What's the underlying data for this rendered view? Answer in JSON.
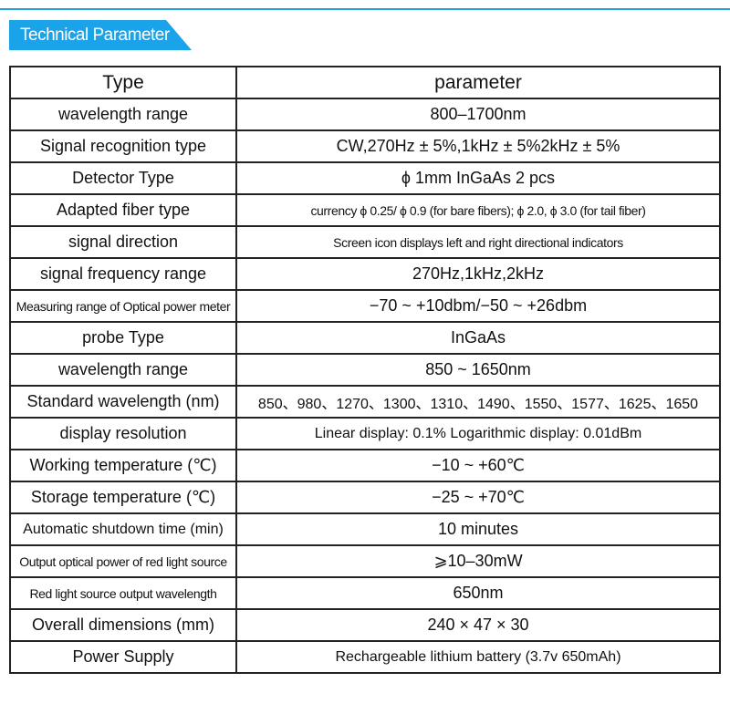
{
  "header": {
    "title": "Technical Parameter"
  },
  "table": {
    "columns": [
      "Type",
      "parameter"
    ],
    "rows": [
      [
        "wavelength range",
        "800–1700nm"
      ],
      [
        "Signal recognition type",
        "CW,270Hz ± 5%,1kHz ± 5%2kHz ± 5%"
      ],
      [
        "Detector Type",
        "ϕ 1mm InGaAs 2 pcs"
      ],
      [
        "Adapted fiber type",
        "currency ϕ 0.25/ ϕ 0.9 (for bare fibers); ϕ 2.0, ϕ 3.0 (for tail fiber)"
      ],
      [
        "signal direction",
        "Screen icon displays left and right directional indicators"
      ],
      [
        "signal frequency range",
        "270Hz,1kHz,2kHz"
      ],
      [
        "Measuring range of Optical power meter",
        "−70 ~ +10dbm/−50 ~ +26dbm"
      ],
      [
        "probe Type",
        "InGaAs"
      ],
      [
        "wavelength range",
        "850 ~ 1650nm"
      ],
      [
        "Standard wavelength (nm)",
        "850、980、1270、1300、1310、1490、1550、1577、1625、1650"
      ],
      [
        "display resolution",
        "Linear display: 0.1% Logarithmic display: 0.01dBm"
      ],
      [
        "Working temperature (℃)",
        "−10 ~ +60℃"
      ],
      [
        "Storage temperature (℃)",
        "−25 ~ +70℃"
      ],
      [
        "Automatic shutdown time (min)",
        "10 minutes"
      ],
      [
        "Output optical power of red light source",
        "⩾10–30mW"
      ],
      [
        "Red light source output wavelength",
        "650nm"
      ],
      [
        "Overall dimensions (mm)",
        "240 × 47 × 30"
      ],
      [
        "Power Supply",
        "Rechargeable lithium battery (3.7v 650mAh)"
      ]
    ]
  }
}
